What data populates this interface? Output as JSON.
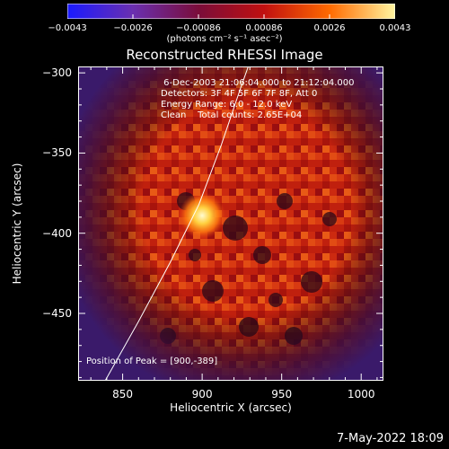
{
  "colorbar": {
    "ticks": [
      "-0.0043",
      "-0.0026",
      "-0.00086",
      "0.00086",
      "0.0026",
      "0.0043"
    ],
    "units_label": "(photons cm⁻² s⁻¹ asec⁻²)",
    "colors": [
      "#1a1aff",
      "#6a2fb0",
      "#7a0d3a",
      "#c01010",
      "#ff6a00",
      "#fff5a0"
    ]
  },
  "plot": {
    "title": "Reconstructed RHESSI Image",
    "info_lines": [
      " 6-Dec-2003 21:06:04.000 to 21:12:04.000",
      "Detectors: 3F 4F 5F 6F 7F 8F, Att 0",
      "Energy Range: 6.0 - 12.0 keV",
      "Clean    Total counts: 2.65E+04"
    ],
    "peak_text": "Position of Peak = [900,-389]"
  },
  "chart_data": {
    "type": "heatmap",
    "title": "Reconstructed RHESSI Image",
    "xlabel": "Heliocentric X (arcsec)",
    "ylabel": "Heliocentric Y (arcsec)",
    "xlim": [
      822,
      1014
    ],
    "ylim": [
      -492,
      -296
    ],
    "xticks": [
      850,
      900,
      950,
      1000
    ],
    "yticks": [
      -300,
      -350,
      -400,
      -450
    ],
    "xtick_labels": [
      "850",
      "900",
      "950",
      "1000"
    ],
    "ytick_labels": [
      "-300",
      "-350",
      "-400",
      "-450"
    ],
    "colorbar_range": [
      -0.0043,
      0.0043
    ],
    "peak": {
      "x": 900,
      "y": -389
    },
    "limb_curve": [
      [
        839,
        -492
      ],
      [
        860,
        -455
      ],
      [
        880,
        -418
      ],
      [
        898,
        -382
      ],
      [
        912,
        -345
      ],
      [
        924,
        -310
      ],
      [
        929,
        -296
      ]
    ]
  },
  "footer": {
    "date": "7-May-2022 18:09"
  }
}
